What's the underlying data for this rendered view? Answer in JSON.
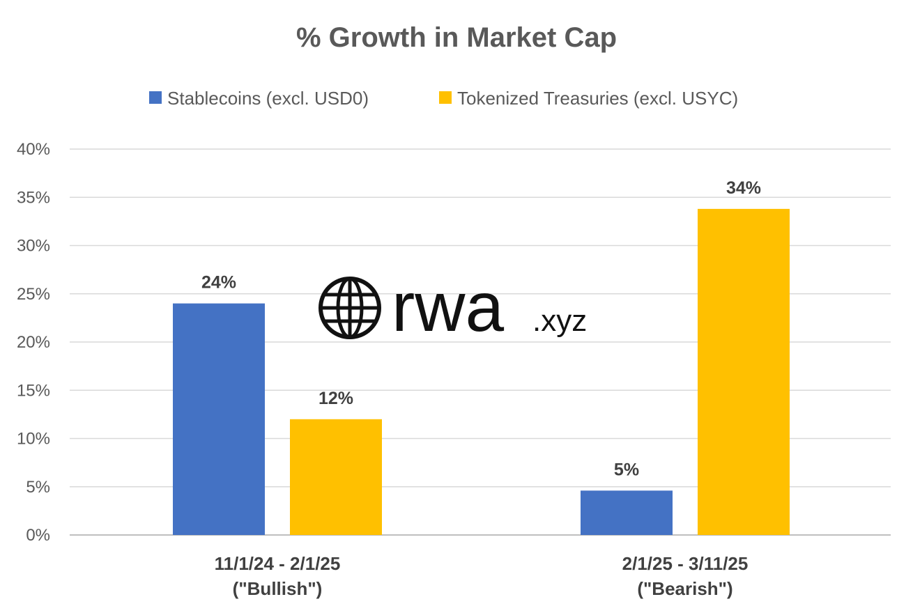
{
  "chart_data": {
    "type": "bar",
    "title": "% Growth in Market Cap",
    "categories": [
      [
        "11/1/24 - 2/1/25",
        "(\"Bullish\")"
      ],
      [
        "2/1/25 - 3/11/25",
        "(\"Bearish\")"
      ]
    ],
    "series": [
      {
        "name": "Stablecoins (excl. USD0)",
        "color": "#4472C4",
        "values": [
          24,
          4.6
        ],
        "labels": [
          "24%",
          "5%"
        ]
      },
      {
        "name": "Tokenized Treasuries (excl. USYC)",
        "color": "#FFC000",
        "values": [
          12,
          33.8
        ],
        "labels": [
          "12%",
          "34%"
        ]
      }
    ],
    "ylim": [
      0,
      40
    ],
    "yticks": [
      0,
      5,
      10,
      15,
      20,
      25,
      30,
      35,
      40
    ],
    "ytick_labels": [
      "0%",
      "5%",
      "10%",
      "15%",
      "20%",
      "25%",
      "30%",
      "35%",
      "40%"
    ],
    "grid": true,
    "legend_position": "top"
  },
  "watermark": {
    "icon": "globe-icon",
    "main_text": "rwa",
    "sub_text": ".xyz"
  }
}
